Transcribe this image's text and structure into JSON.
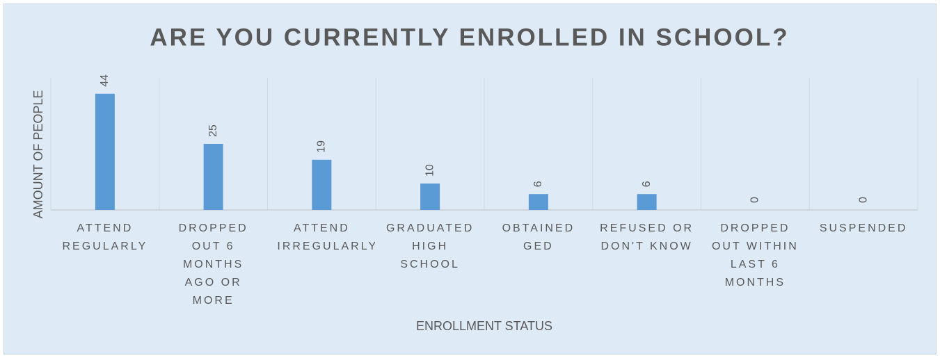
{
  "chart_data": {
    "type": "bar",
    "title": "ARE YOU CURRENTLY ENROLLED IN SCHOOL?",
    "x_label": "ENROLLMENT STATUS",
    "y_label": "AMOUNT OF PEOPLE",
    "categories": [
      "ATTEND REGULARLY",
      "DROPPED OUT 6 MONTHS AGO OR MORE",
      "ATTEND IRREGULARLY",
      "GRADUATED HIGH SCHOOL",
      "OBTAINED GED",
      "REFUSED OR DON'T KNOW",
      "DROPPED OUT WITHIN LAST 6 MONTHS",
      "SUSPENDED"
    ],
    "values": [
      44,
      25,
      19,
      10,
      6,
      6,
      0,
      0
    ],
    "color": "#5b9bd5",
    "ylim": [
      0,
      50
    ],
    "grid": true
  }
}
